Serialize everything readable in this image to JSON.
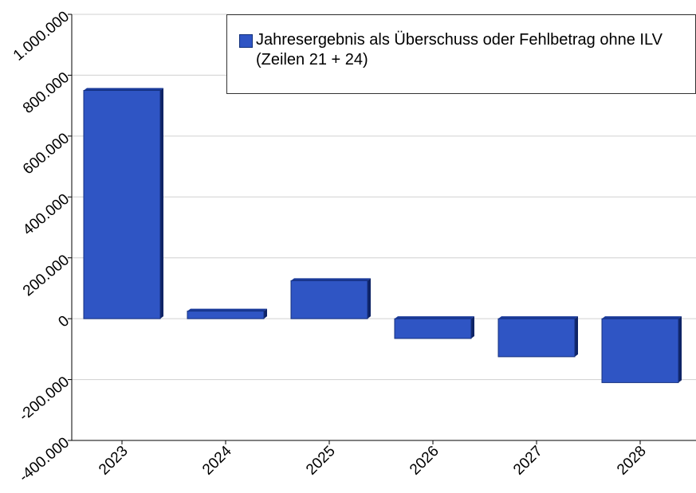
{
  "chart_data": {
    "type": "bar",
    "categories": [
      "2023",
      "2024",
      "2025",
      "2026",
      "2027",
      "2028"
    ],
    "series": [
      {
        "name": "Jahresergebnis als Überschuss oder Fehlbetrag ohne ILV (Zeilen 21 + 24)",
        "color": "#2f55c4",
        "values": [
          750000,
          25000,
          125000,
          -65000,
          -125000,
          -210000
        ]
      }
    ],
    "ylim": [
      -400000,
      1000000
    ],
    "yticks": [
      {
        "value": -400000,
        "label": "-400.000"
      },
      {
        "value": -200000,
        "label": "-200.000"
      },
      0,
      {
        "value": 200000,
        "label": "200.000"
      },
      {
        "value": 400000,
        "label": "400.000"
      },
      {
        "value": 600000,
        "label": "600.000"
      },
      {
        "value": 800000,
        "label": "800.000"
      },
      {
        "value": 1000000,
        "label": "1.000.000"
      }
    ],
    "grid": true,
    "legend": "top-right"
  }
}
